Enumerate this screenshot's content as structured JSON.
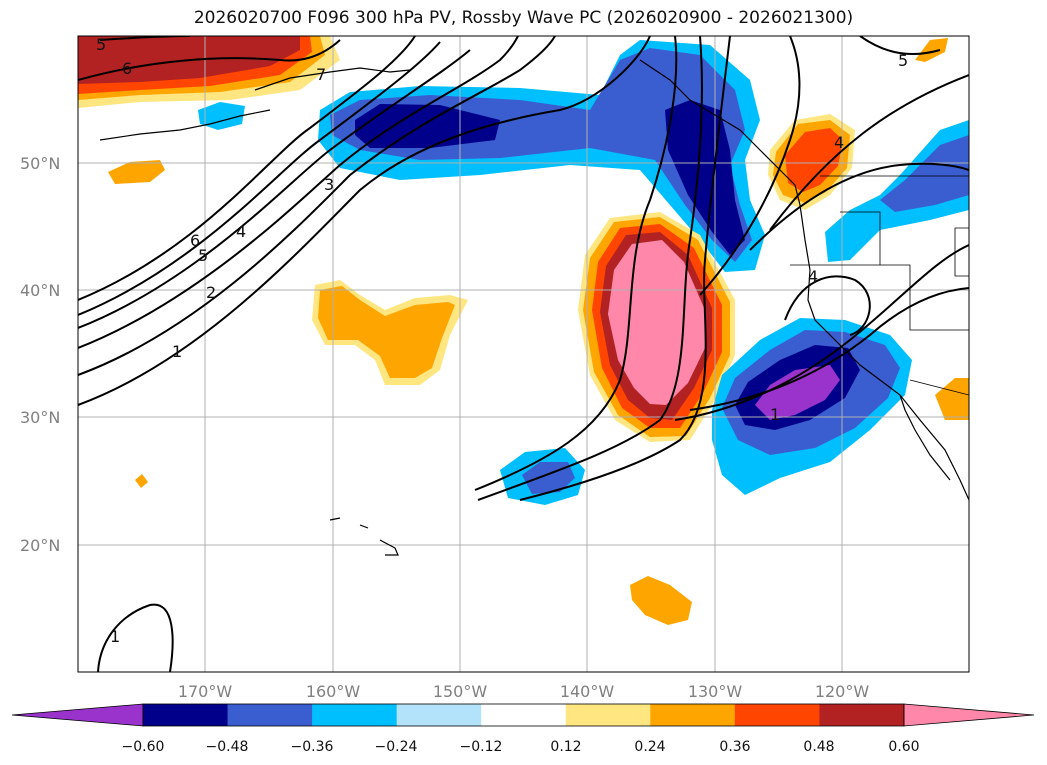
{
  "title": "2026020700 F096 300 hPa PV, Rossby Wave PC (2026020900 - 2026021300)",
  "axes": {
    "lat_labels": [
      "50°N",
      "40°N",
      "30°N",
      "20°N"
    ],
    "lon_labels": [
      "170°W",
      "160°W",
      "150°W",
      "140°W",
      "130°W",
      "120°W"
    ]
  },
  "colorbar": {
    "ticks": [
      "−0.60",
      "−0.48",
      "−0.36",
      "−0.24",
      "−0.12",
      "0.12",
      "0.24",
      "0.36",
      "0.48",
      "0.60"
    ],
    "colors": [
      "#9933cc",
      "#00008b",
      "#3a5ed0",
      "#00bfff",
      "#b3e3fa",
      "#ffffff",
      "#ffe680",
      "#ffa500",
      "#ff4500",
      "#b22222",
      "#ff88aa"
    ]
  },
  "contour_labels": [
    "5",
    "6",
    "7",
    "3",
    "6",
    "5",
    "4",
    "2",
    "1",
    "4",
    "1",
    "4",
    "5",
    "1"
  ],
  "colors": {
    "grid": "#b0b0b0",
    "contour": "#000000",
    "coast": "#000000"
  }
}
